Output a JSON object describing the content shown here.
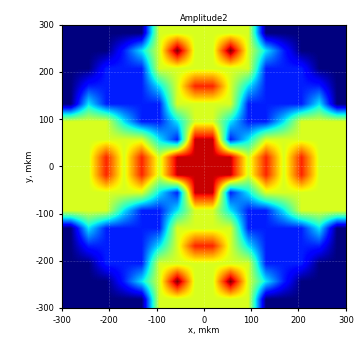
{
  "chart_data": {
    "type": "heatmap",
    "title": "Amplitude2",
    "x_label": "x, mkm",
    "y_label": "y, mkm",
    "xlim": [
      -300,
      300
    ],
    "ylim": [
      -300,
      300
    ],
    "xticks": [
      -300,
      -200,
      -100,
      0,
      100,
      200,
      300
    ],
    "yticks": [
      -300,
      -200,
      -100,
      0,
      100,
      200,
      300
    ],
    "color": "jet",
    "grid": true,
    "cells": [
      [
        0.08,
        0.08,
        0.08,
        0.08,
        0.08,
        0.55,
        0.55,
        0.55,
        0.55,
        0.55,
        0.55,
        0.08,
        0.08,
        0.08,
        0.08,
        0.08
      ],
      [
        0.08,
        0.08,
        0.08,
        0.2,
        0.35,
        0.55,
        0.85,
        0.55,
        0.55,
        0.85,
        0.55,
        0.35,
        0.2,
        0.08,
        0.08,
        0.08
      ],
      [
        0.08,
        0.08,
        0.2,
        0.2,
        0.2,
        0.55,
        0.55,
        0.55,
        0.55,
        0.55,
        0.55,
        0.2,
        0.2,
        0.2,
        0.08,
        0.08
      ],
      [
        0.08,
        0.2,
        0.2,
        0.2,
        0.2,
        0.35,
        0.55,
        0.75,
        0.75,
        0.55,
        0.35,
        0.2,
        0.2,
        0.2,
        0.2,
        0.08
      ],
      [
        0.08,
        0.35,
        0.2,
        0.2,
        0.2,
        0.2,
        0.55,
        0.55,
        0.55,
        0.55,
        0.2,
        0.2,
        0.2,
        0.2,
        0.35,
        0.08
      ],
      [
        0.55,
        0.55,
        0.55,
        0.35,
        0.2,
        0.2,
        0.35,
        0.55,
        0.55,
        0.35,
        0.2,
        0.2,
        0.35,
        0.55,
        0.55,
        0.55
      ],
      [
        0.55,
        0.55,
        0.55,
        0.55,
        0.55,
        0.35,
        0.2,
        0.8,
        0.8,
        0.2,
        0.35,
        0.55,
        0.55,
        0.55,
        0.55,
        0.55
      ],
      [
        0.55,
        0.55,
        0.75,
        0.55,
        0.75,
        0.55,
        0.8,
        0.8,
        0.8,
        0.8,
        0.55,
        0.75,
        0.55,
        0.75,
        0.55,
        0.55
      ],
      [
        0.55,
        0.55,
        0.75,
        0.55,
        0.75,
        0.55,
        0.8,
        0.8,
        0.8,
        0.8,
        0.55,
        0.75,
        0.55,
        0.75,
        0.55,
        0.55
      ],
      [
        0.55,
        0.55,
        0.55,
        0.55,
        0.55,
        0.35,
        0.2,
        0.8,
        0.8,
        0.2,
        0.35,
        0.55,
        0.55,
        0.55,
        0.55,
        0.55
      ],
      [
        0.55,
        0.55,
        0.55,
        0.35,
        0.2,
        0.2,
        0.35,
        0.55,
        0.55,
        0.35,
        0.2,
        0.2,
        0.35,
        0.55,
        0.55,
        0.55
      ],
      [
        0.08,
        0.35,
        0.2,
        0.2,
        0.2,
        0.2,
        0.55,
        0.55,
        0.55,
        0.55,
        0.2,
        0.2,
        0.2,
        0.2,
        0.35,
        0.08
      ],
      [
        0.08,
        0.2,
        0.2,
        0.2,
        0.2,
        0.35,
        0.55,
        0.75,
        0.75,
        0.55,
        0.35,
        0.2,
        0.2,
        0.2,
        0.2,
        0.08
      ],
      [
        0.08,
        0.08,
        0.2,
        0.2,
        0.2,
        0.55,
        0.55,
        0.55,
        0.55,
        0.55,
        0.55,
        0.2,
        0.2,
        0.2,
        0.08,
        0.08
      ],
      [
        0.08,
        0.08,
        0.08,
        0.2,
        0.35,
        0.55,
        0.85,
        0.55,
        0.55,
        0.85,
        0.55,
        0.35,
        0.2,
        0.08,
        0.08,
        0.08
      ],
      [
        0.08,
        0.08,
        0.08,
        0.08,
        0.08,
        0.55,
        0.55,
        0.55,
        0.55,
        0.55,
        0.55,
        0.08,
        0.08,
        0.08,
        0.08,
        0.08
      ]
    ]
  }
}
